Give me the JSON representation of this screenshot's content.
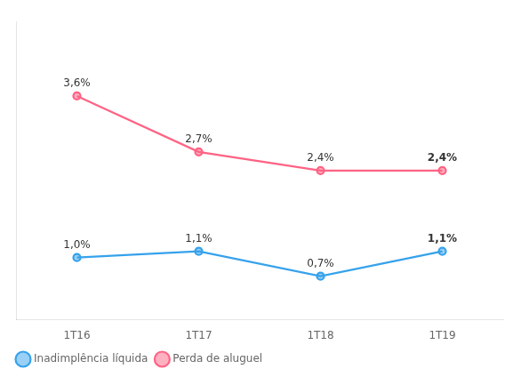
{
  "chart_data": {
    "type": "line",
    "categories": [
      "1T16",
      "1T17",
      "1T18",
      "1T19"
    ],
    "series": [
      {
        "name": "Inadimplência líquida",
        "values": [
          1.0,
          1.1,
          0.7,
          1.1
        ],
        "value_labels": [
          "1,0%",
          "1,1%",
          "0,7%",
          "1,1%"
        ],
        "marker": "circle"
      },
      {
        "name": "Perda de aluguel",
        "values": [
          3.6,
          2.7,
          2.4,
          2.4
        ],
        "value_labels": [
          "3,6%",
          "2,7%",
          "2,4%",
          "2,4%"
        ],
        "marker": "circle"
      }
    ],
    "ylim": [
      0.0,
      4.8
    ],
    "tick_labels": "x",
    "grid": false,
    "legend": "lower left",
    "data_labels": true
  }
}
